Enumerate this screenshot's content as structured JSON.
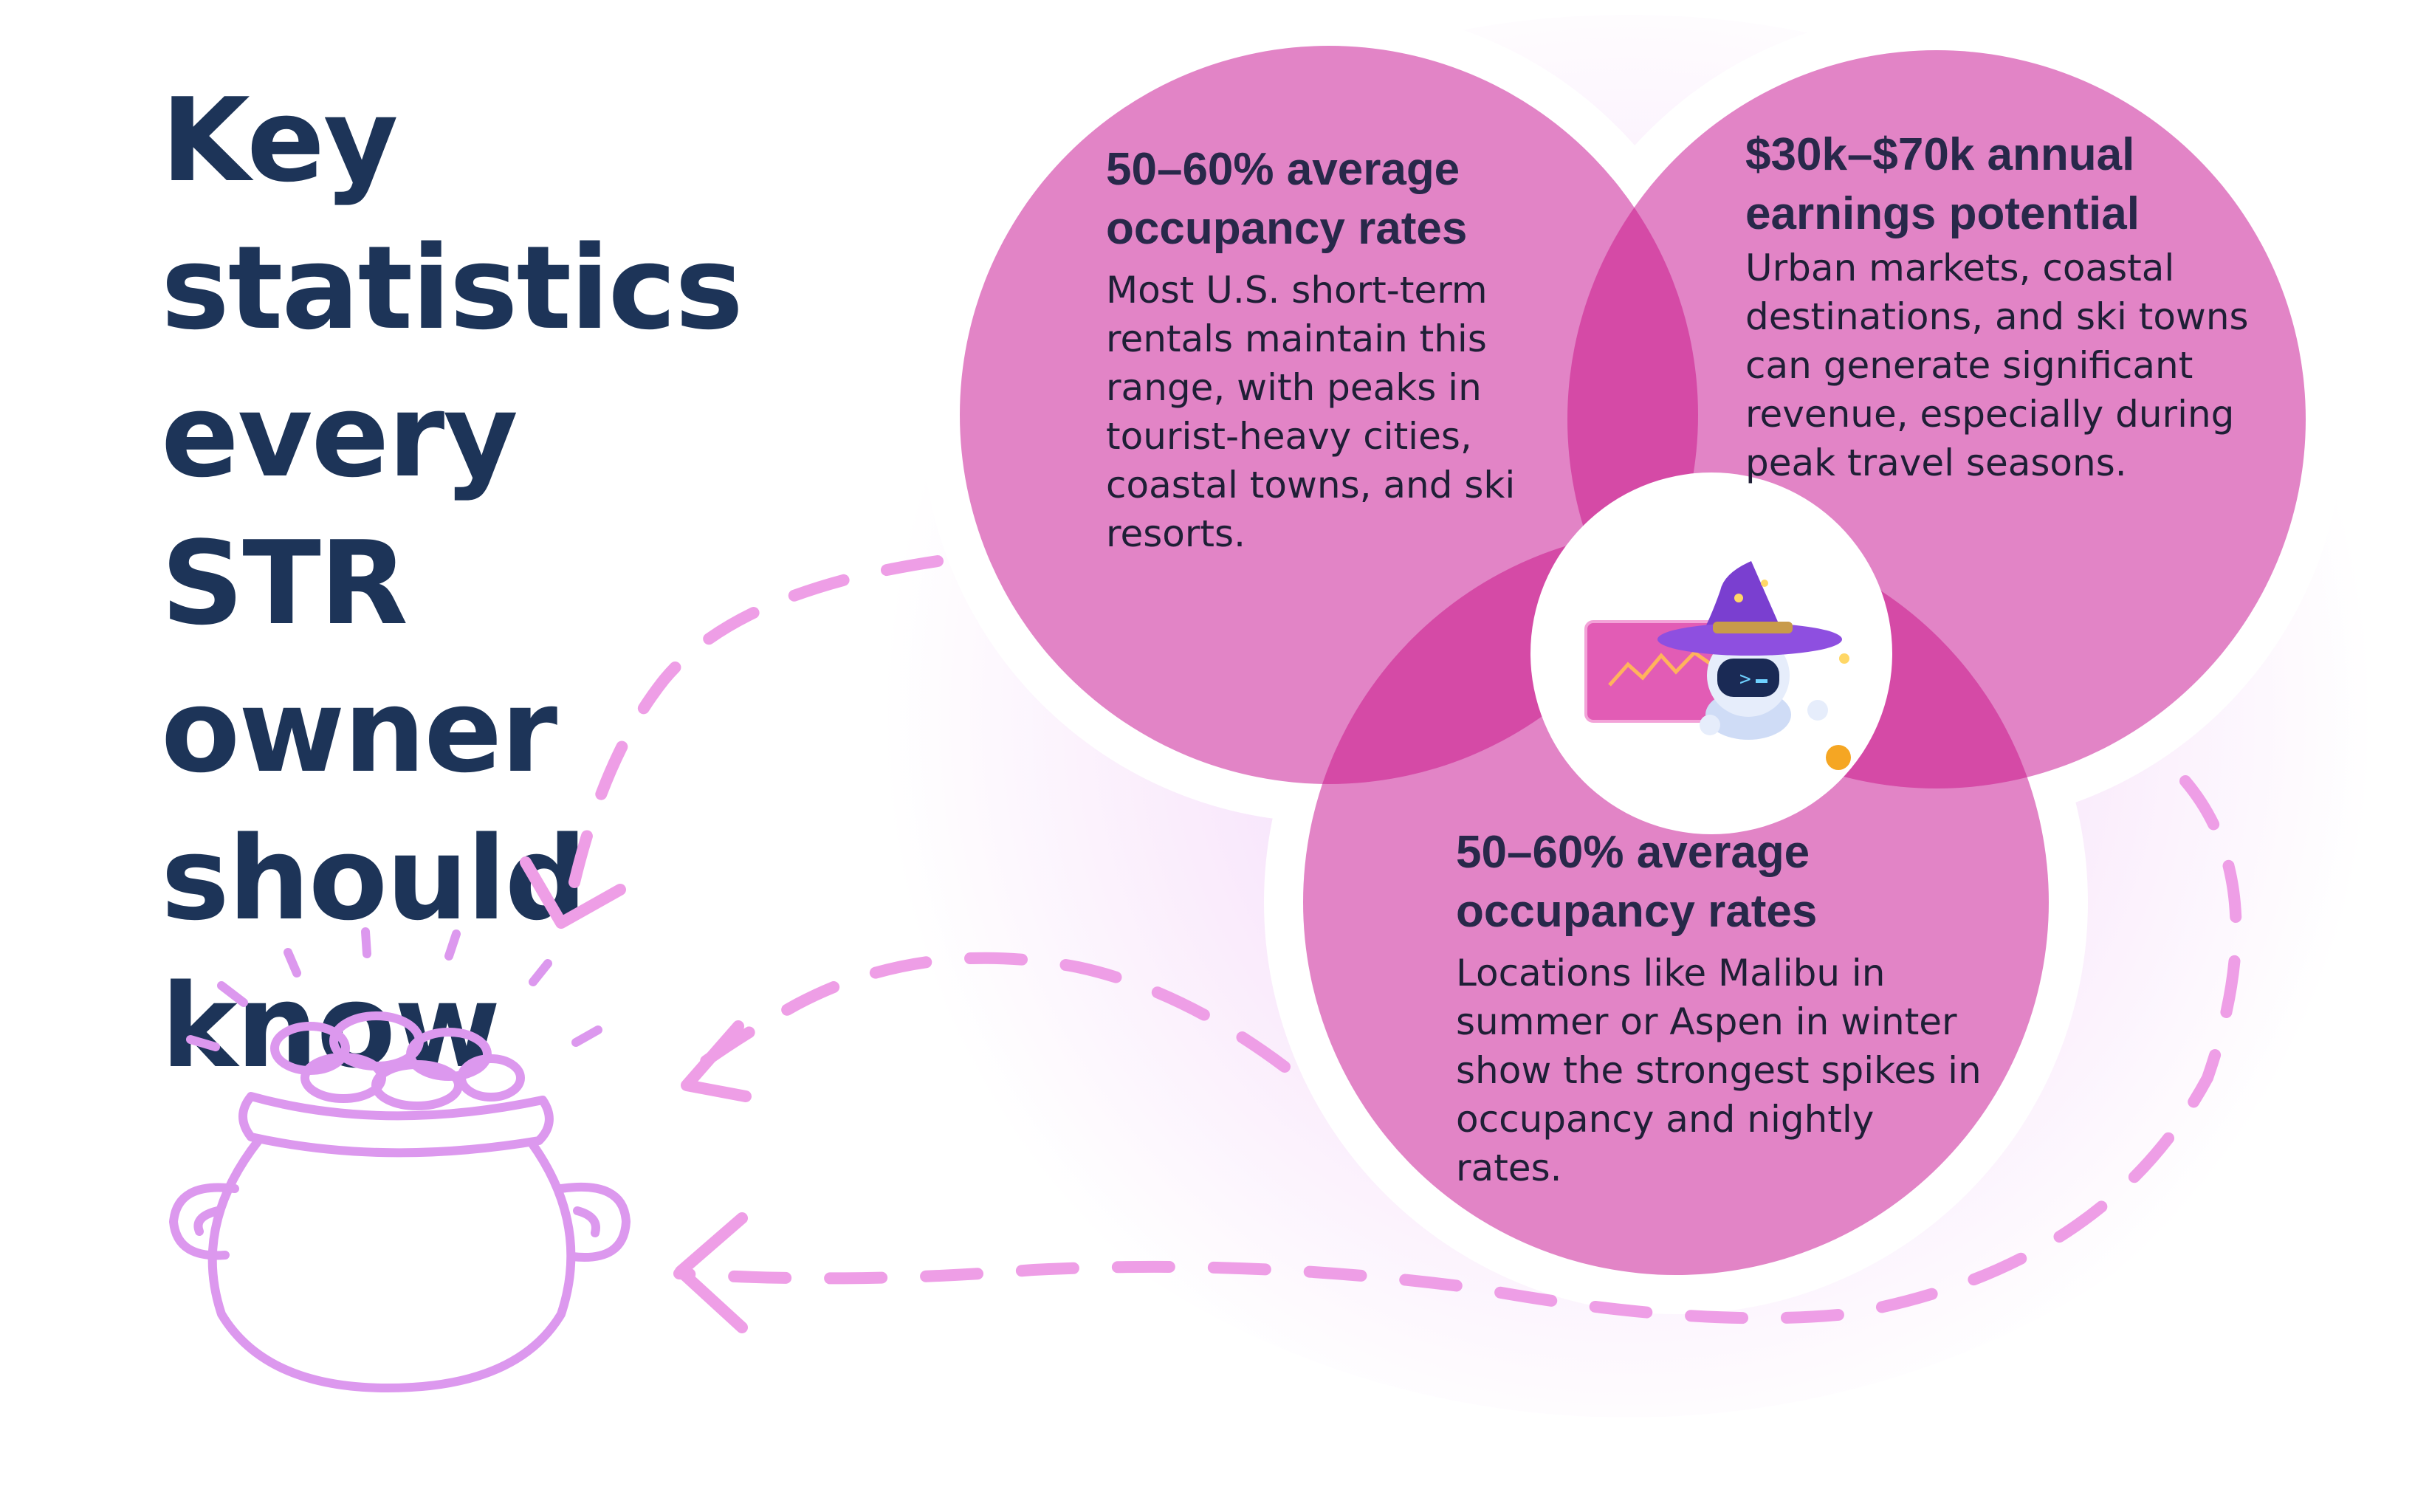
{
  "title": "Key statistics every STR owner should know",
  "colors": {
    "title": "#1d3458",
    "circle_fill": "#e284c6",
    "circle_overlap": "#d54aa6",
    "circle_border": "#ffffff",
    "dash": "#ee9ee6",
    "pot": "#dc98ee"
  },
  "stats": [
    {
      "heading": "50–60% average occupancy rates",
      "body": "Most U.S. short-term rentals maintain this range, with peaks in tourist-heavy cities, coastal towns, and ski resorts."
    },
    {
      "heading": "$30k–$70k annual earnings potential",
      "body": "Urban markets, coastal destinations, and ski towns can generate significant revenue, especially during peak travel seasons."
    },
    {
      "heading": "50–60% average occupancy rates",
      "body": "Locations like Malibu in summer or Aspen in winter show the strongest spikes in occupancy and nightly rates."
    }
  ],
  "icons": {
    "center": "wizard-robot-chart-icon",
    "pot": "pot-of-gold-icon",
    "arrows": "dashed-arrow-icon"
  }
}
